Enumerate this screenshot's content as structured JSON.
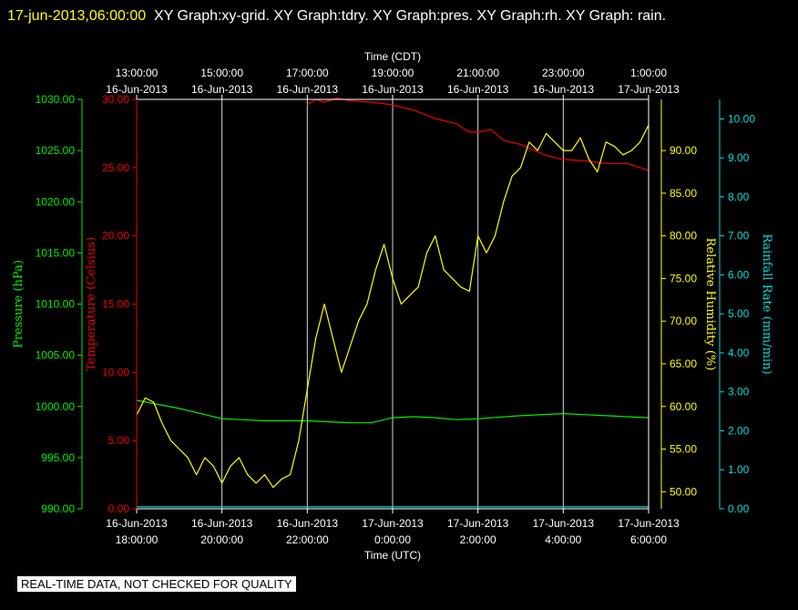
{
  "header": {
    "timestamp": "17-jun-2013,06:00:00",
    "title_rest": "XY Graph:xy-grid.  XY Graph:tdry.  XY Graph:pres.  XY Graph:rh.  XY Graph: rain."
  },
  "footer": {
    "notice": "REAL-TIME DATA, NOT CHECKED FOR QUALITY"
  },
  "chart_data": {
    "type": "line",
    "top_axis": {
      "label": "Time (CDT)",
      "ticks": [
        {
          "x": 0,
          "time": "13:00:00",
          "date": "16-Jun-2013"
        },
        {
          "x": 2,
          "time": "15:00:00",
          "date": "16-Jun-2013"
        },
        {
          "x": 4,
          "time": "17:00:00",
          "date": "16-Jun-2013"
        },
        {
          "x": 6,
          "time": "19:00:00",
          "date": "16-Jun-2013"
        },
        {
          "x": 8,
          "time": "21:00:00",
          "date": "16-Jun-2013"
        },
        {
          "x": 10,
          "time": "23:00:00",
          "date": "16-Jun-2013"
        },
        {
          "x": 12,
          "time": "1:00:00",
          "date": "17-Jun-2013"
        }
      ]
    },
    "bottom_axis": {
      "label": "Time (UTC)",
      "ticks": [
        {
          "x": 0,
          "date": "16-Jun-2013",
          "time": "18:00:00"
        },
        {
          "x": 2,
          "date": "16-Jun-2013",
          "time": "20:00:00"
        },
        {
          "x": 4,
          "date": "16-Jun-2013",
          "time": "22:00:00"
        },
        {
          "x": 6,
          "date": "17-Jun-2013",
          "time": "0:00:00"
        },
        {
          "x": 8,
          "date": "17-Jun-2013",
          "time": "2:00:00"
        },
        {
          "x": 10,
          "date": "17-Jun-2013",
          "time": "4:00:00"
        },
        {
          "x": 12,
          "date": "17-Jun-2013",
          "time": "6:00:00"
        }
      ]
    },
    "xlim": [
      0,
      12
    ],
    "grid": true,
    "axes": {
      "pressure": {
        "label": "Pressure (hPa)",
        "color": "#00ee00",
        "ylim": [
          990,
          1030
        ],
        "ticks": [
          "990.00",
          "995.00",
          "1000.00",
          "1005.00",
          "1010.00",
          "1015.00",
          "1020.00",
          "1025.00",
          "1030.00"
        ]
      },
      "temperature": {
        "label": "Temperature (Celsius)",
        "color": "#ee0000",
        "ylim": [
          0,
          30
        ],
        "ticks": [
          "0.00",
          "5.00",
          "10.00",
          "15.00",
          "20.00",
          "25.00",
          "30.00"
        ]
      },
      "rh": {
        "label": "Relative Humidity (%)",
        "color": "#ffff00",
        "ylim": [
          48,
          96
        ],
        "ticks": [
          "50.00",
          "55.00",
          "60.00",
          "65.00",
          "70.00",
          "75.00",
          "80.00",
          "85.00",
          "90.00"
        ]
      },
      "rain": {
        "label": "Rainfall Rate (mm/min)",
        "color": "#00dddd",
        "ylim": [
          0,
          10.5
        ],
        "ticks": [
          "0.00",
          "1.00",
          "2.00",
          "3.00",
          "4.00",
          "5.00",
          "6.00",
          "7.00",
          "8.00",
          "9.00",
          "10.00"
        ]
      }
    },
    "series": [
      {
        "axis": "temperature",
        "color": "#ee0000",
        "x": [
          4.0,
          4.2,
          4.4,
          4.7,
          5.0,
          5.5,
          6.0,
          6.5,
          7.0,
          7.5,
          7.8,
          8.0,
          8.3,
          8.6,
          9.0,
          9.3,
          9.6,
          10.0,
          10.5,
          11.0,
          11.5,
          12.0
        ],
        "y": [
          29.6,
          30.0,
          29.8,
          30.1,
          29.9,
          29.8,
          29.6,
          29.2,
          28.6,
          28.2,
          27.6,
          27.6,
          27.8,
          27.0,
          26.7,
          26.3,
          25.9,
          25.6,
          25.5,
          25.3,
          25.3,
          24.8
        ]
      },
      {
        "axis": "pressure",
        "color": "#00ee00",
        "x": [
          0.0,
          0.5,
          1.0,
          1.5,
          2.0,
          3.0,
          4.0,
          5.0,
          5.5,
          6.0,
          6.5,
          7.0,
          7.5,
          8.0,
          9.0,
          10.0,
          11.0,
          12.0
        ],
        "y": [
          1000.6,
          1000.2,
          999.8,
          999.3,
          998.8,
          998.6,
          998.6,
          998.4,
          998.4,
          998.9,
          999.0,
          998.9,
          998.7,
          998.8,
          999.1,
          999.3,
          999.1,
          998.9
        ]
      },
      {
        "axis": "rh",
        "color": "#ffff00",
        "x": [
          0.0,
          0.2,
          0.4,
          0.6,
          0.8,
          1.0,
          1.2,
          1.4,
          1.6,
          1.8,
          2.0,
          2.2,
          2.4,
          2.6,
          2.8,
          3.0,
          3.2,
          3.4,
          3.6,
          3.8,
          4.0,
          4.2,
          4.4,
          4.6,
          4.8,
          5.0,
          5.2,
          5.4,
          5.6,
          5.8,
          6.0,
          6.2,
          6.4,
          6.6,
          6.8,
          7.0,
          7.2,
          7.4,
          7.6,
          7.8,
          8.0,
          8.2,
          8.4,
          8.6,
          8.8,
          9.0,
          9.2,
          9.4,
          9.6,
          9.8,
          10.0,
          10.2,
          10.4,
          10.6,
          10.8,
          11.0,
          11.2,
          11.4,
          11.6,
          11.8,
          12.0
        ],
        "y": [
          59.0,
          61.0,
          60.5,
          58.0,
          56.0,
          55.0,
          54.0,
          52.0,
          54.0,
          53.0,
          51.0,
          53.0,
          54.0,
          52.0,
          51.0,
          52.0,
          50.5,
          51.5,
          52.0,
          56.0,
          62.0,
          68.0,
          72.0,
          68.0,
          64.0,
          67.0,
          70.0,
          72.0,
          76.0,
          79.0,
          75.0,
          72.0,
          73.0,
          74.0,
          78.0,
          80.0,
          76.0,
          75.0,
          74.0,
          73.5,
          80.0,
          78.0,
          80.0,
          84.0,
          87.0,
          88.0,
          91.0,
          90.0,
          92.0,
          91.0,
          90.0,
          90.0,
          91.5,
          89.0,
          87.5,
          91.0,
          90.5,
          89.5,
          90.0,
          91.0,
          93.0
        ]
      },
      {
        "axis": "rain",
        "color": "#00dddd",
        "x": [
          0,
          12
        ],
        "y": [
          0.05,
          0.05
        ]
      }
    ]
  }
}
